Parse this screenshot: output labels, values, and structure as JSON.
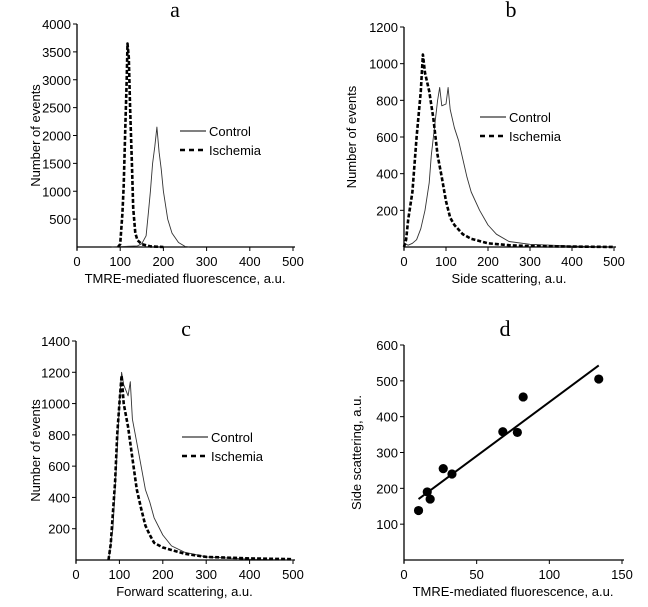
{
  "chart_data": [
    {
      "panel": "a",
      "type": "line",
      "xlabel": "TMRE-mediated fluorescence, a.u.",
      "ylabel": "Number of events",
      "xlim": [
        0,
        500
      ],
      "ylim": [
        0,
        4000
      ],
      "xticks": [
        0,
        100,
        200,
        300,
        400,
        500
      ],
      "yticks": [
        500,
        1000,
        1500,
        2000,
        2500,
        3000,
        3500,
        4000
      ],
      "legend": "right",
      "series": [
        {
          "name": "Control",
          "style": "solid-thin",
          "points": [
            [
              80,
              0
            ],
            [
              140,
              20
            ],
            [
              150,
              60
            ],
            [
              160,
              200
            ],
            [
              165,
              600
            ],
            [
              170,
              1000
            ],
            [
              175,
              1500
            ],
            [
              180,
              1800
            ],
            [
              185,
              2150
            ],
            [
              190,
              1700
            ],
            [
              195,
              1400
            ],
            [
              200,
              1000
            ],
            [
              210,
              500
            ],
            [
              220,
              250
            ],
            [
              235,
              80
            ],
            [
              250,
              10
            ],
            [
              260,
              0
            ]
          ]
        },
        {
          "name": "Ischemia",
          "style": "dashed-thick",
          "points": [
            [
              95,
              0
            ],
            [
              100,
              50
            ],
            [
              105,
              600
            ],
            [
              108,
              1100
            ],
            [
              112,
              2200
            ],
            [
              115,
              3000
            ],
            [
              117,
              3650
            ],
            [
              120,
              3400
            ],
            [
              123,
              2500
            ],
            [
              127,
              1500
            ],
            [
              130,
              700
            ],
            [
              135,
              250
            ],
            [
              140,
              120
            ],
            [
              150,
              50
            ],
            [
              170,
              10
            ],
            [
              200,
              0
            ]
          ]
        }
      ]
    },
    {
      "panel": "b",
      "type": "line",
      "xlabel": "Side scattering, a.u.",
      "ylabel": "Number of events",
      "xlim": [
        0,
        500
      ],
      "ylim": [
        0,
        1200
      ],
      "xticks": [
        0,
        100,
        200,
        300,
        400,
        500
      ],
      "yticks": [
        200,
        400,
        600,
        800,
        1000,
        1200
      ],
      "legend": "right",
      "series": [
        {
          "name": "Control",
          "style": "solid-thin",
          "points": [
            [
              0,
              20
            ],
            [
              10,
              10
            ],
            [
              20,
              20
            ],
            [
              30,
              40
            ],
            [
              40,
              100
            ],
            [
              50,
              200
            ],
            [
              60,
              350
            ],
            [
              65,
              500
            ],
            [
              70,
              600
            ],
            [
              80,
              800
            ],
            [
              85,
              870
            ],
            [
              90,
              770
            ],
            [
              100,
              780
            ],
            [
              105,
              870
            ],
            [
              110,
              750
            ],
            [
              120,
              650
            ],
            [
              130,
              580
            ],
            [
              140,
              480
            ],
            [
              150,
              380
            ],
            [
              160,
              300
            ],
            [
              180,
              200
            ],
            [
              200,
              120
            ],
            [
              220,
              70
            ],
            [
              250,
              30
            ],
            [
              300,
              15
            ],
            [
              400,
              5
            ],
            [
              500,
              0
            ]
          ]
        },
        {
          "name": "Ischemia",
          "style": "dashed-thick",
          "points": [
            [
              0,
              0
            ],
            [
              5,
              40
            ],
            [
              10,
              150
            ],
            [
              20,
              300
            ],
            [
              30,
              600
            ],
            [
              40,
              850
            ],
            [
              45,
              1050
            ],
            [
              50,
              950
            ],
            [
              60,
              850
            ],
            [
              70,
              700
            ],
            [
              80,
              500
            ],
            [
              90,
              380
            ],
            [
              100,
              250
            ],
            [
              110,
              160
            ],
            [
              120,
              120
            ],
            [
              140,
              70
            ],
            [
              160,
              45
            ],
            [
              200,
              20
            ],
            [
              250,
              10
            ],
            [
              300,
              5
            ],
            [
              500,
              0
            ]
          ]
        }
      ]
    },
    {
      "panel": "c",
      "type": "line",
      "xlabel": "Forward scattering, a.u.",
      "ylabel": "Number of events",
      "xlim": [
        0,
        500
      ],
      "ylim": [
        0,
        1400
      ],
      "xticks": [
        0,
        100,
        200,
        300,
        400,
        500
      ],
      "yticks": [
        200,
        400,
        600,
        800,
        1000,
        1200,
        1400
      ],
      "legend": "right",
      "series": [
        {
          "name": "Control",
          "style": "solid-thin",
          "points": [
            [
              75,
              0
            ],
            [
              85,
              200
            ],
            [
              95,
              700
            ],
            [
              100,
              1000
            ],
            [
              105,
              1200
            ],
            [
              110,
              1120
            ],
            [
              120,
              1050
            ],
            [
              125,
              1140
            ],
            [
              130,
              900
            ],
            [
              140,
              750
            ],
            [
              150,
              600
            ],
            [
              160,
              450
            ],
            [
              170,
              370
            ],
            [
              180,
              270
            ],
            [
              200,
              160
            ],
            [
              220,
              90
            ],
            [
              250,
              50
            ],
            [
              300,
              20
            ],
            [
              400,
              5
            ],
            [
              500,
              0
            ]
          ]
        },
        {
          "name": "Ischemia",
          "style": "dashed-thick",
          "points": [
            [
              75,
              0
            ],
            [
              80,
              100
            ],
            [
              90,
              500
            ],
            [
              95,
              800
            ],
            [
              100,
              1000
            ],
            [
              105,
              1180
            ],
            [
              110,
              1000
            ],
            [
              120,
              850
            ],
            [
              130,
              650
            ],
            [
              140,
              450
            ],
            [
              150,
              330
            ],
            [
              160,
              220
            ],
            [
              170,
              160
            ],
            [
              180,
              110
            ],
            [
              200,
              80
            ],
            [
              250,
              40
            ],
            [
              300,
              20
            ],
            [
              400,
              10
            ],
            [
              500,
              5
            ]
          ]
        }
      ]
    },
    {
      "panel": "d",
      "type": "scatter",
      "xlabel": "TMRE-mediated fluorescence, a.u.",
      "ylabel": "Side scattering, a.u.",
      "xlim": [
        0,
        150
      ],
      "ylim": [
        0,
        600
      ],
      "xticks": [
        0,
        50,
        100,
        150
      ],
      "yticks": [
        100,
        200,
        300,
        400,
        500,
        600
      ],
      "points": [
        [
          10,
          138
        ],
        [
          16,
          190
        ],
        [
          18,
          170
        ],
        [
          27,
          255
        ],
        [
          33,
          240
        ],
        [
          68,
          358
        ],
        [
          78,
          356
        ],
        [
          82,
          455
        ],
        [
          134,
          505
        ]
      ],
      "fit_line": [
        [
          10,
          170
        ],
        [
          134,
          543
        ]
      ]
    }
  ]
}
